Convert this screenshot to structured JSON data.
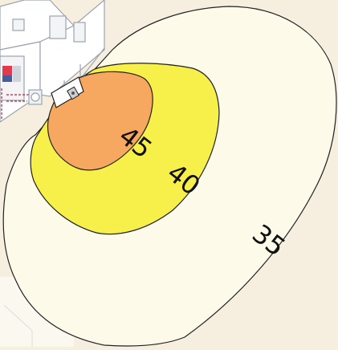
{
  "contours": [
    {
      "label": "45",
      "fill": "#f6a860"
    },
    {
      "label": "40",
      "fill": "#f7ef4a"
    },
    {
      "label": "35",
      "fill": "#fdfaea"
    }
  ],
  "colors": {
    "background": "#f6efe0",
    "outline": "#222222",
    "house_wall": "#ffffff",
    "house_line": "#9aa3ad",
    "pipe": "#c02030"
  }
}
